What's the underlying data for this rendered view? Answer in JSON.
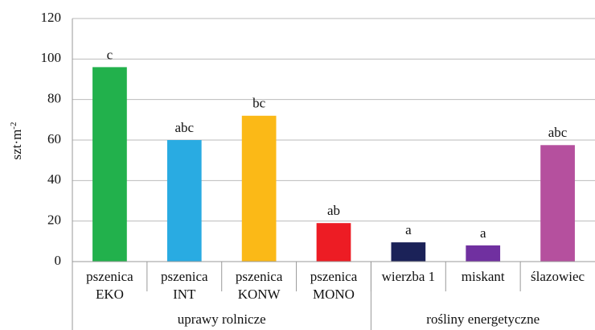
{
  "chart_data": {
    "type": "bar",
    "y_label": "szt·m",
    "y_label_sup": "-2",
    "categories": [
      [
        "pszenica",
        "EKO"
      ],
      [
        "pszenica",
        "INT"
      ],
      [
        "pszenica",
        "KONW"
      ],
      [
        "pszenica",
        "MONO"
      ],
      [
        "wierzba 1"
      ],
      [
        "miskant"
      ],
      [
        "ślazowiec"
      ]
    ],
    "values": [
      96,
      60,
      72,
      19,
      9.5,
      8,
      57.5
    ],
    "annotations": [
      "c",
      "abc",
      "bc",
      "ab",
      "a",
      "a",
      "abc"
    ],
    "colors": [
      "#22b14c",
      "#29abe2",
      "#fbb917",
      "#ed1c24",
      "#1b2258",
      "#7030a0",
      "#b5509e"
    ],
    "groups": [
      {
        "label": "uprawy rolnicze",
        "size": 4
      },
      {
        "label": "rośliny energetyczne",
        "size": 3
      }
    ],
    "ylim": [
      0,
      120
    ],
    "yticks": [
      0,
      20,
      40,
      60,
      80,
      100,
      120
    ],
    "grid": true
  }
}
